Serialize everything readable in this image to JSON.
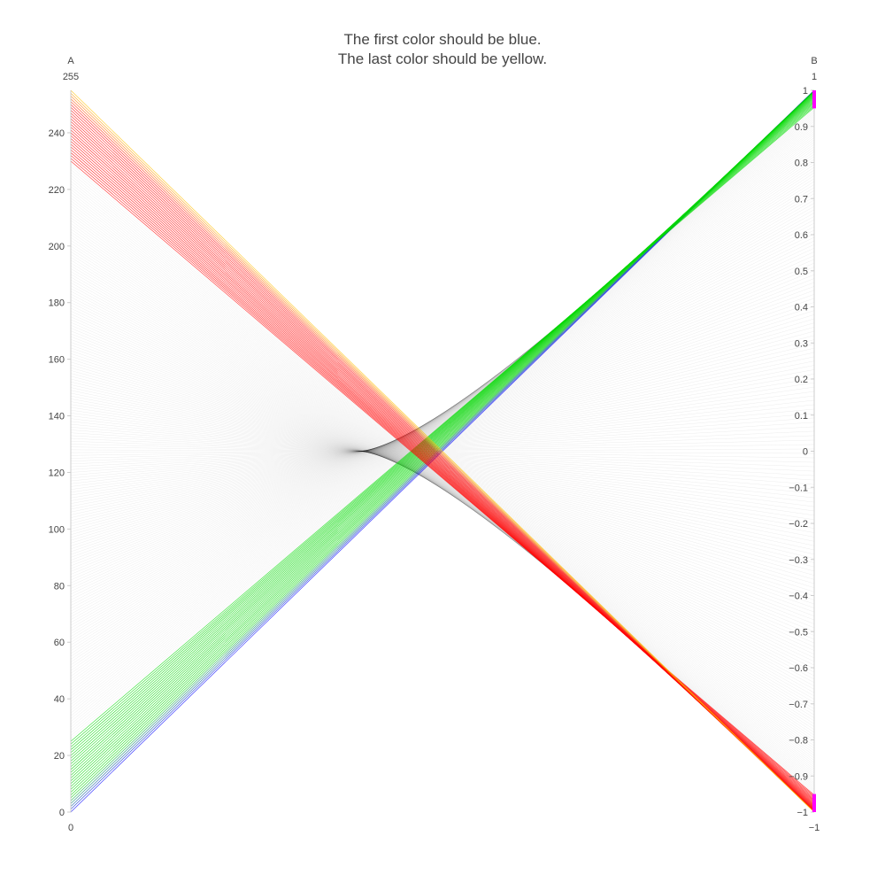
{
  "chart_data": {
    "type": "parcoords",
    "title": [
      "The first color should be blue.",
      "The last color should be yellow."
    ],
    "colors": {
      "blue": "#0000ff",
      "green": "#00d800",
      "black": "#000000",
      "red": "#ff0000",
      "yellow": "#ffbf00",
      "constraint": "#ff00ff",
      "axis": "#cccccc",
      "text": "#444444"
    },
    "dimensions": [
      {
        "label": "A",
        "range": [
          0,
          255
        ],
        "range_labels": {
          "min": "0",
          "max": "255"
        },
        "ticks": [
          0,
          20,
          40,
          60,
          80,
          100,
          120,
          140,
          160,
          180,
          200,
          220,
          240
        ],
        "tick_labels": [
          "0",
          "20",
          "40",
          "60",
          "80",
          "100",
          "120",
          "140",
          "160",
          "180",
          "200",
          "220",
          "240"
        ]
      },
      {
        "label": "B",
        "range": [
          -1,
          1
        ],
        "range_labels": {
          "min": "−1",
          "max": "1"
        },
        "ticks": [
          -1,
          -0.9,
          -0.8,
          -0.7,
          -0.6,
          -0.5,
          -0.4,
          -0.3,
          -0.2,
          -0.1,
          0,
          0.1,
          0.2,
          0.3,
          0.4,
          0.5,
          0.6,
          0.7,
          0.8,
          0.9,
          1
        ],
        "tick_labels": [
          "−1",
          "−0.9",
          "−0.8",
          "−0.7",
          "−0.6",
          "−0.5",
          "−0.4",
          "−0.3",
          "−0.2",
          "−0.1",
          "0",
          "0.1",
          "0.2",
          "0.3",
          "0.4",
          "0.5",
          "0.6",
          "0.7",
          "0.8",
          "0.9",
          "1"
        ],
        "constraint_ranges": [
          [
            0.95,
            1
          ],
          [
            -1,
            -0.95
          ]
        ]
      }
    ],
    "lines": {
      "count": 256,
      "A_values": "0 through 255",
      "B_values": "cos(pi * A / 255) ... pattern: B goes from 1 to -1 as A goes from 0 to 255",
      "highlighted": "lines with B within constraint ranges are colored; others faded gray"
    }
  }
}
